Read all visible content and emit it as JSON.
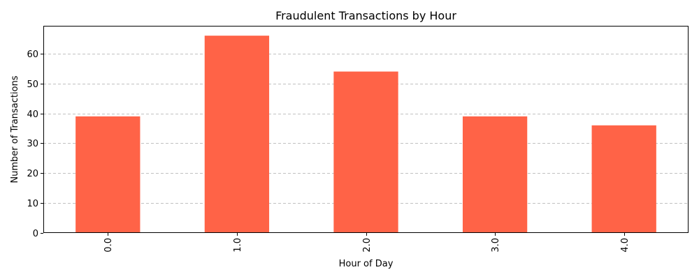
{
  "chart_data": {
    "type": "bar",
    "title": "Fraudulent Transactions by Hour",
    "xlabel": "Hour of Day",
    "ylabel": "Number of Transactions",
    "categories": [
      "0.0",
      "1.0",
      "2.0",
      "3.0",
      "4.0"
    ],
    "values": [
      39,
      66,
      54,
      39,
      36
    ],
    "ylim": [
      0,
      69.3
    ],
    "yticks": [
      0,
      10,
      20,
      30,
      40,
      50,
      60
    ],
    "grid": {
      "axis": "y",
      "style": "dashed",
      "color": "#c0c0c0"
    },
    "x_tick_rotation_deg": 90,
    "bar_color": "#ff6347"
  }
}
